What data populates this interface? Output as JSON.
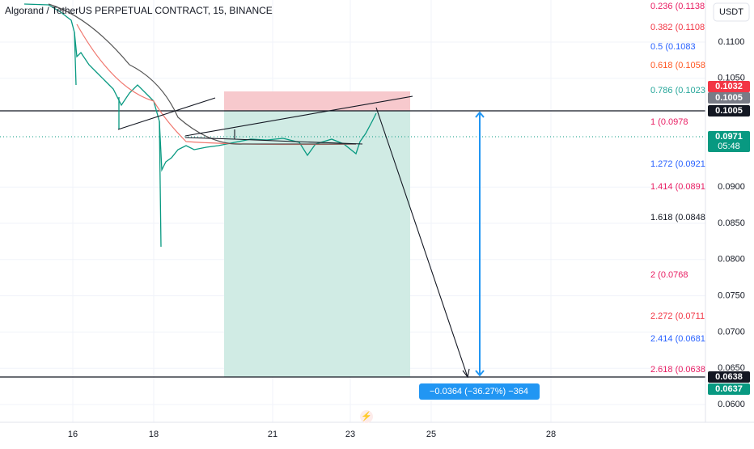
{
  "header": {
    "title": "Algorand / TetherUS PERPETUAL CONTRACT, 15, BINANCE",
    "currency": "USDT"
  },
  "price_axis": {
    "labels": [
      "0.1100",
      "0.1050",
      "0.0900",
      "0.0850",
      "0.0800",
      "0.0750",
      "0.0700",
      "0.0650",
      "0.0600"
    ]
  },
  "time_axis": {
    "labels": [
      "16",
      "18",
      "21",
      "23",
      "25",
      "28"
    ]
  },
  "fib_levels": [
    {
      "label": "0.236 (0.1138",
      "color": "#e91e63"
    },
    {
      "label": "0.382 (0.1108",
      "color": "#f23645"
    },
    {
      "label": "0.5 (0.1083",
      "color": "#2962ff"
    },
    {
      "label": "0.618 (0.1058",
      "color": "#ff5722"
    },
    {
      "label": "0.786 (0.1023",
      "color": "#26a69a"
    },
    {
      "label": "1 (0.0978",
      "color": "#e91e63"
    },
    {
      "label": "1.272 (0.0921",
      "color": "#2962ff"
    },
    {
      "label": "1.414 (0.0891",
      "color": "#e91e63"
    },
    {
      "label": "1.618 (0.0848",
      "color": "#131722"
    },
    {
      "label": "2 (0.0768",
      "color": "#e91e63"
    },
    {
      "label": "2.272 (0.0711",
      "color": "#f23645"
    },
    {
      "label": "2.414 (0.0681",
      "color": "#2962ff"
    },
    {
      "label": "2.618 (0.0638",
      "color": "#e91e63"
    }
  ],
  "price_tags": [
    {
      "label": "0.1032",
      "color": "#f23645"
    },
    {
      "label": "0.1005",
      "color": "#787b86"
    },
    {
      "label": "0.1005",
      "color": "#131722"
    },
    {
      "label": "0.0971",
      "color": "#089981",
      "countdown": "05:48"
    },
    {
      "label": "0.0638",
      "color": "#131722"
    },
    {
      "label": "0.0637",
      "color": "#089981"
    }
  ],
  "measure": {
    "label": "−0.0364 (−36.27%) −364"
  }
}
